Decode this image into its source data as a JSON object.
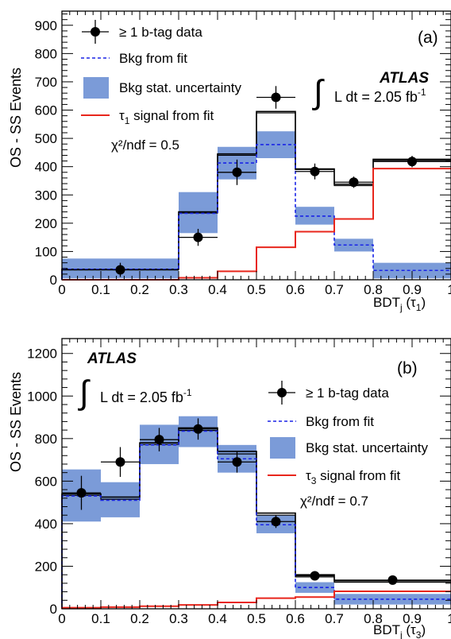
{
  "chart_data": [
    {
      "type": "bar",
      "panel_label": "(a)",
      "experiment": "ATLAS",
      "lumi_prefix": "L dt = 2.05 fb",
      "lumi_sup": "-1",
      "chi2_label": "χ²/ndf = 0.5",
      "ylabel": "OS - SS Events",
      "xlabel_main": "BDT",
      "xlabel_sub": "j",
      "xlabel_tail": " (τ",
      "xlabel_tail_sub": "1",
      "xlabel_close": ")",
      "xlim": [
        0,
        1
      ],
      "ylim": [
        0,
        950
      ],
      "xticks": [
        "0",
        "0.1",
        "0.2",
        "0.3",
        "0.4",
        "0.5",
        "0.6",
        "0.7",
        "0.8",
        "0.9",
        "1"
      ],
      "yticks": [
        "0",
        "100",
        "200",
        "300",
        "400",
        "500",
        "600",
        "700",
        "800",
        "900"
      ],
      "bin_edges": [
        0,
        0.3,
        0.4,
        0.5,
        0.6,
        0.7,
        0.8,
        1.0
      ],
      "legend": {
        "data": "≥ 1 b-tag data",
        "bkg": "Bkg from fit",
        "unc": "Bkg stat. uncertainty",
        "signal": "τ",
        "signal_sub": "1",
        "signal_tail": " signal from fit"
      },
      "series": [
        {
          "name": "≥ 1 b-tag data",
          "x": [
            0.15,
            0.35,
            0.45,
            0.55,
            0.65,
            0.75,
            0.9
          ],
          "y": [
            35,
            150,
            380,
            645,
            383,
            345,
            418
          ],
          "yerr": [
            25,
            30,
            45,
            40,
            28,
            20,
            20
          ]
        },
        {
          "name": "Bkg from fit",
          "values": [
            37,
            235,
            413,
            478,
            225,
            123,
            33
          ]
        },
        {
          "name": "Bkg stat. uncertainty",
          "low": [
            5,
            165,
            355,
            430,
            195,
            100,
            5
          ],
          "high": [
            75,
            310,
            470,
            525,
            258,
            145,
            60
          ]
        },
        {
          "name": "τ1 signal from fit",
          "values": [
            0,
            7,
            30,
            115,
            170,
            215,
            393
          ]
        },
        {
          "name": "total",
          "values": [
            37,
            240,
            445,
            595,
            392,
            338,
            426
          ],
          "lower_values": [
            37,
            236,
            440,
            590,
            390,
            333,
            422
          ]
        }
      ]
    },
    {
      "type": "bar",
      "panel_label": "(b)",
      "experiment": "ATLAS",
      "lumi_prefix": "L dt = 2.05 fb",
      "lumi_sup": "-1",
      "chi2_label": "χ²/ndf = 0.7",
      "ylabel": "OS - SS Events",
      "xlabel_main": "BDT",
      "xlabel_sub": "j",
      "xlabel_tail": " (τ",
      "xlabel_tail_sub": "3",
      "xlabel_close": ")",
      "xlim": [
        0,
        1
      ],
      "ylim": [
        0,
        1270
      ],
      "xticks": [
        "0",
        "0.1",
        "0.2",
        "0.3",
        "0.4",
        "0.5",
        "0.6",
        "0.7",
        "0.8",
        "0.9",
        "1"
      ],
      "yticks": [
        "0",
        "200",
        "400",
        "600",
        "800",
        "1000",
        "1200"
      ],
      "bin_edges": [
        0,
        0.1,
        0.2,
        0.3,
        0.4,
        0.5,
        0.6,
        0.7,
        1.0
      ],
      "legend": {
        "data": "≥ 1 b-tag data",
        "bkg": "Bkg from fit",
        "unc": "Bkg stat. uncertainty",
        "signal": "τ",
        "signal_sub": "3",
        "signal_tail": " signal from fit"
      },
      "series": [
        {
          "name": "≥ 1 b-tag data",
          "x": [
            0.05,
            0.15,
            0.25,
            0.35,
            0.45,
            0.55,
            0.65,
            0.85
          ],
          "y": [
            545,
            690,
            795,
            845,
            690,
            410,
            155,
            135
          ],
          "yerr": [
            80,
            70,
            55,
            50,
            50,
            30,
            12,
            12
          ]
        },
        {
          "name": "Bkg from fit",
          "values": [
            530,
            510,
            770,
            835,
            705,
            395,
            100,
            45
          ]
        },
        {
          "name": "Bkg stat. uncertainty",
          "low": [
            410,
            430,
            680,
            760,
            640,
            355,
            75,
            20
          ],
          "high": [
            655,
            595,
            865,
            905,
            770,
            440,
            125,
            70
          ]
        },
        {
          "name": "τ3 signal from fit",
          "values": [
            5,
            8,
            12,
            18,
            30,
            50,
            55,
            82
          ]
        },
        {
          "name": "total",
          "values": [
            540,
            525,
            780,
            850,
            740,
            450,
            160,
            132
          ],
          "lower_values": [
            533,
            515,
            772,
            838,
            728,
            440,
            150,
            125
          ]
        }
      ]
    }
  ]
}
